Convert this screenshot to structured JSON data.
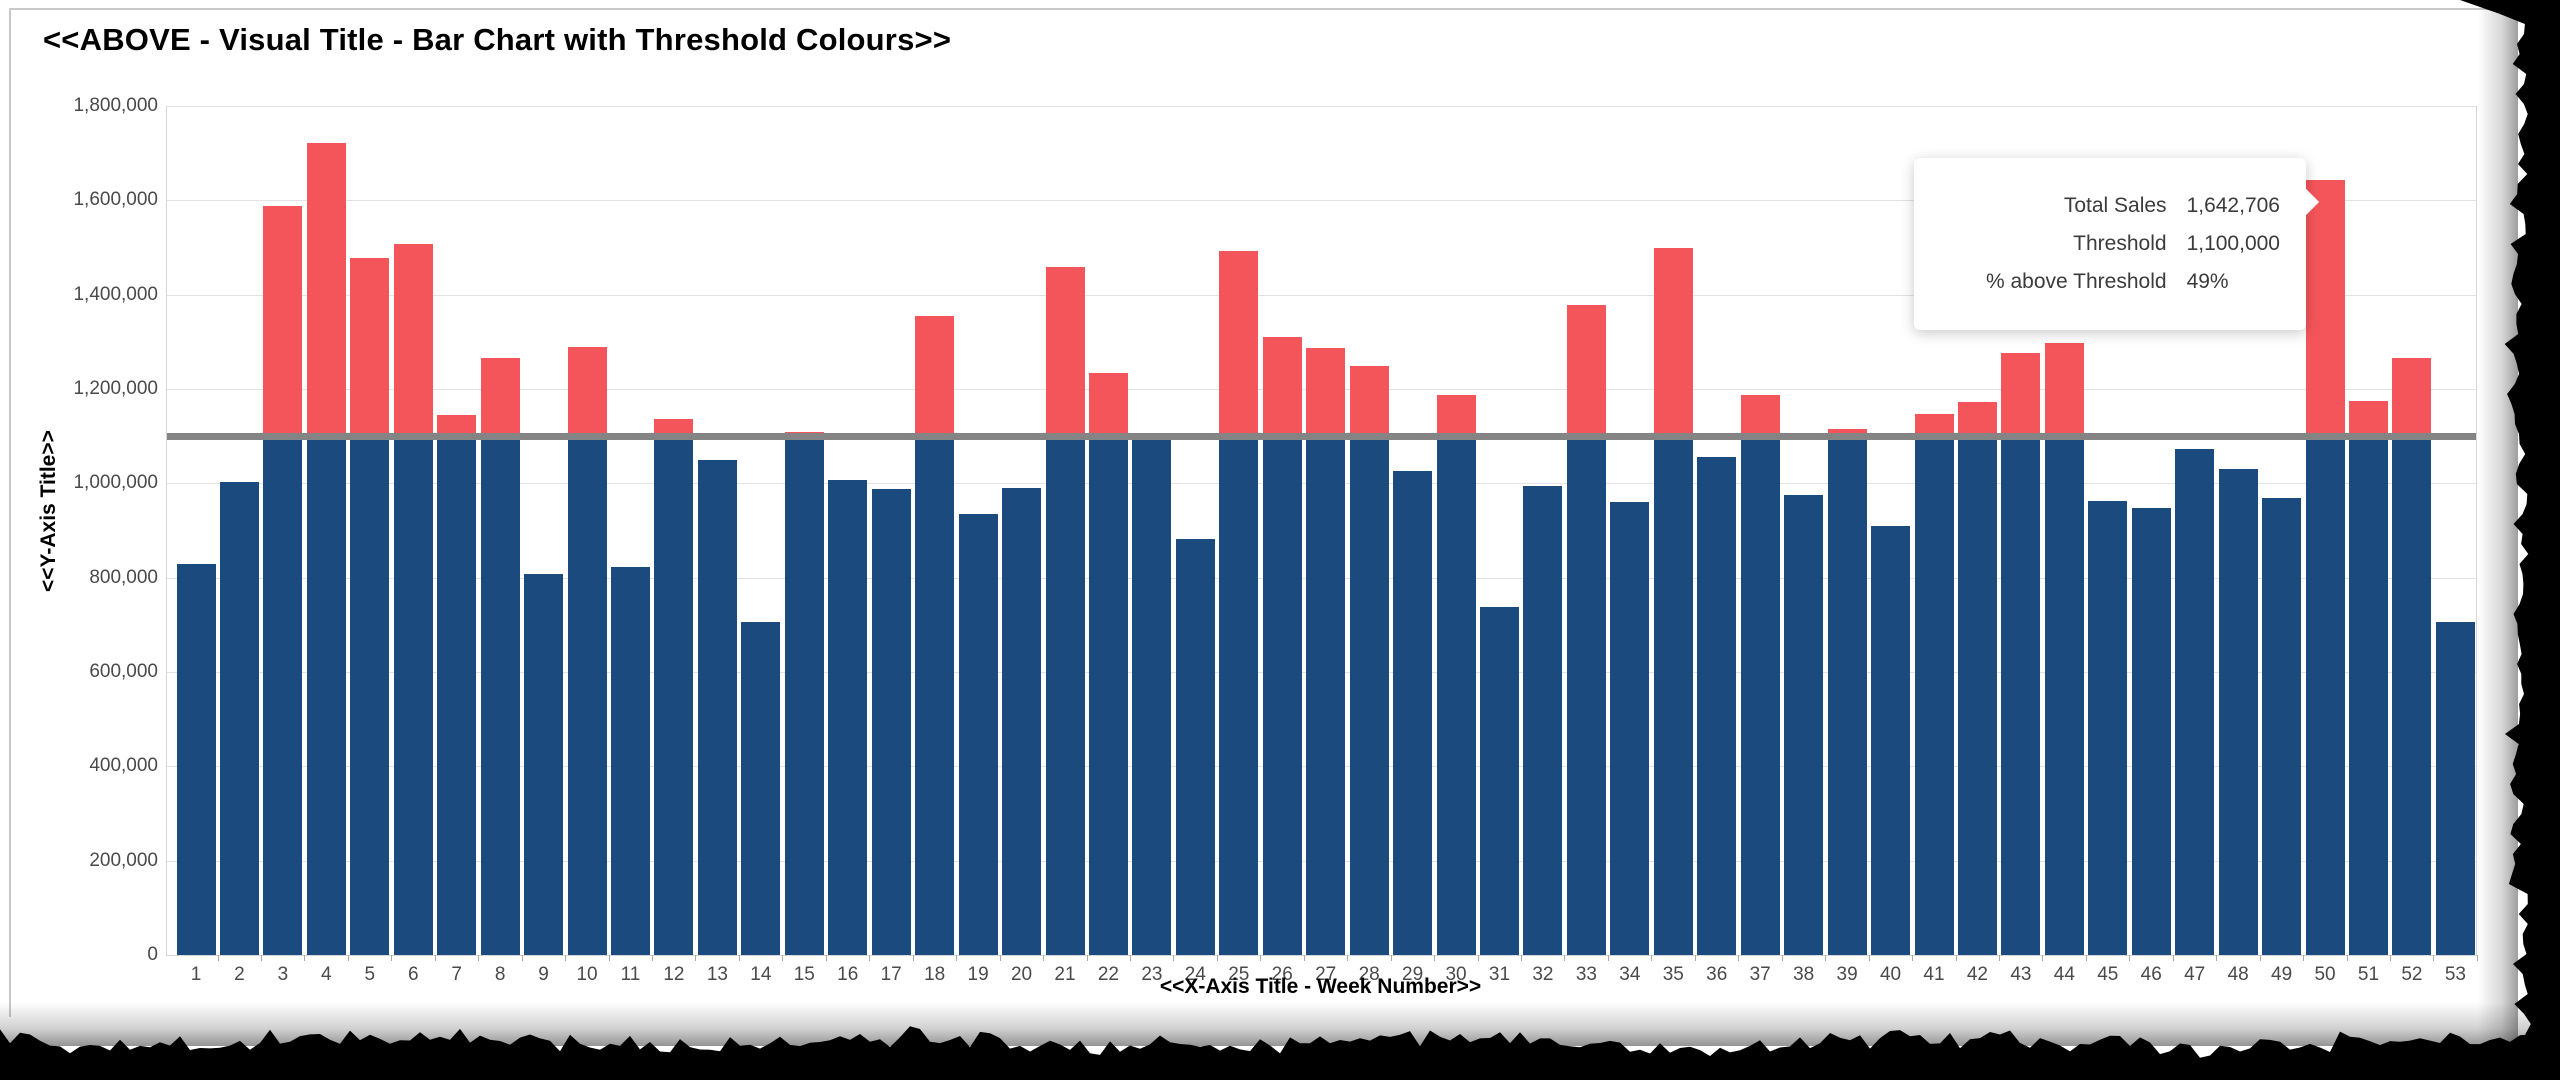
{
  "title": "<<ABOVE - Visual Title - Bar Chart with Threshold Colours>>",
  "y_axis": {
    "title": "<<Y-Axis Title>>",
    "tick_values": [
      0,
      200000,
      400000,
      600000,
      800000,
      1000000,
      1200000,
      1400000,
      1600000,
      1800000
    ]
  },
  "x_axis": {
    "title": "<<X-Axis Title - Week Number>>",
    "tick_labels": [
      "1",
      "2",
      "3",
      "4",
      "5",
      "6",
      "7",
      "8",
      "9",
      "10",
      "11",
      "12",
      "13",
      "14",
      "15",
      "16",
      "17",
      "18",
      "19",
      "20",
      "21",
      "22",
      "23",
      "24",
      "25",
      "26",
      "27",
      "28",
      "29",
      "30",
      "31",
      "32",
      "33",
      "34",
      "35",
      "36",
      "37",
      "38",
      "39",
      "40",
      "41",
      "42",
      "43",
      "44",
      "45",
      "46",
      "47",
      "48",
      "49",
      "50",
      "51",
      "52",
      "53"
    ]
  },
  "tooltip": {
    "rows": [
      {
        "label": "Total Sales",
        "value": "1,642,706"
      },
      {
        "label": "Threshold",
        "value": "1,100,000"
      },
      {
        "label": "% above Threshold",
        "value": "49%"
      }
    ]
  },
  "colors": {
    "below_threshold": "#1b4b7e",
    "above_threshold": "#f4555a",
    "threshold_line": "#848484",
    "gridline": "#e2e2e2",
    "axis_text": "#4a4a4a",
    "title_text": "#000000",
    "torn_edge": "#000000"
  },
  "chart_data": {
    "type": "bar",
    "title": "<<ABOVE - Visual Title - Bar Chart with Threshold Colours>>",
    "xlabel": "<<X-Axis Title - Week Number>>",
    "ylabel": "<<Y-Axis Title>>",
    "ylim": [
      0,
      1800000
    ],
    "grid": true,
    "legend": false,
    "threshold": 1100000,
    "categories": [
      1,
      2,
      3,
      4,
      5,
      6,
      7,
      8,
      9,
      10,
      11,
      12,
      13,
      14,
      15,
      16,
      17,
      18,
      19,
      20,
      21,
      22,
      23,
      24,
      25,
      26,
      27,
      28,
      29,
      30,
      31,
      32,
      33,
      34,
      35,
      36,
      37,
      38,
      39,
      40,
      41,
      42,
      43,
      44,
      45,
      46,
      47,
      48,
      49,
      50,
      51,
      52,
      53
    ],
    "series": [
      {
        "name": "Total Sales",
        "values": [
          830000,
          1002000,
          1588000,
          1722000,
          1477000,
          1507000,
          1145000,
          1266000,
          808000,
          1290000,
          823000,
          1136000,
          1050000,
          707000,
          1108000,
          1008000,
          988000,
          1355000,
          935000,
          990000,
          1458000,
          1235000,
          1096000,
          883000,
          1493000,
          1310000,
          1287000,
          1248000,
          1026000,
          1187000,
          737000,
          995000,
          1378000,
          960000,
          1500000,
          1055000,
          1187000,
          975000,
          1115000,
          910000,
          1148000,
          1172000,
          1277000,
          1297000,
          963000,
          948000,
          1073000,
          1030000,
          968000,
          1642706,
          1175000,
          1265000,
          705000
        ]
      }
    ],
    "color_rule": "bar segment below 1,100,000 is dark blue; portion above 1,100,000 is red",
    "hovered_category": 50
  }
}
